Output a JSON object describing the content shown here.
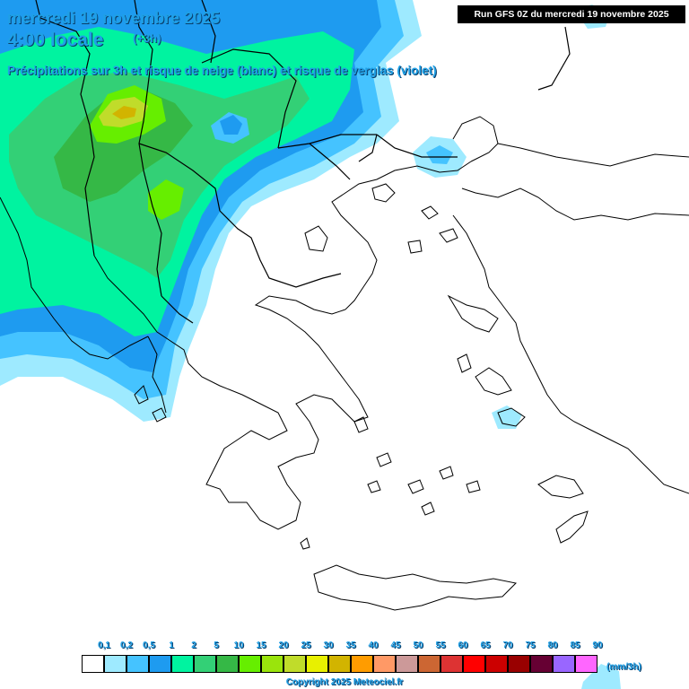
{
  "header": {
    "date": "mercredi 19 novembre 2025",
    "time": "4:00 locale",
    "offset": "(+3h)",
    "subtitle": "Précipitations sur 3h et risque de neige (blanc) et risque de verglas (violet)"
  },
  "run_info": "Run GFS 0Z du mercredi 19 novembre 2025",
  "legend": {
    "unit": "(mm/3h)",
    "items": [
      {
        "label": "",
        "color": "#ffffff"
      },
      {
        "label": "0,1",
        "color": "#9eeaff"
      },
      {
        "label": "0,2",
        "color": "#45c3ff"
      },
      {
        "label": "0,5",
        "color": "#1e9bf0"
      },
      {
        "label": "1",
        "color": "#00f3a0"
      },
      {
        "label": "2",
        "color": "#33d076"
      },
      {
        "label": "5",
        "color": "#35b846"
      },
      {
        "label": "10",
        "color": "#66ee00"
      },
      {
        "label": "15",
        "color": "#9ae40c"
      },
      {
        "label": "20",
        "color": "#c0dc2a"
      },
      {
        "label": "25",
        "color": "#e8f000"
      },
      {
        "label": "30",
        "color": "#d2b400"
      },
      {
        "label": "35",
        "color": "#ff9c00"
      },
      {
        "label": "40",
        "color": "#ff9966"
      },
      {
        "label": "45",
        "color": "#cc9999"
      },
      {
        "label": "50",
        "color": "#cc6633"
      },
      {
        "label": "55",
        "color": "#dd3333"
      },
      {
        "label": "60",
        "color": "#ff0000"
      },
      {
        "label": "65",
        "color": "#cc0000"
      },
      {
        "label": "70",
        "color": "#990000"
      },
      {
        "label": "75",
        "color": "#660033"
      },
      {
        "label": "80",
        "color": "#9966ff"
      },
      {
        "label": "85",
        "color": "#ff66ff"
      },
      {
        "label": "90",
        "color": ""
      }
    ]
  },
  "copyright": "Copyright 2025 Meteociel.fr",
  "colors": {
    "title": "#1fa0e6",
    "coast": "#000000"
  }
}
